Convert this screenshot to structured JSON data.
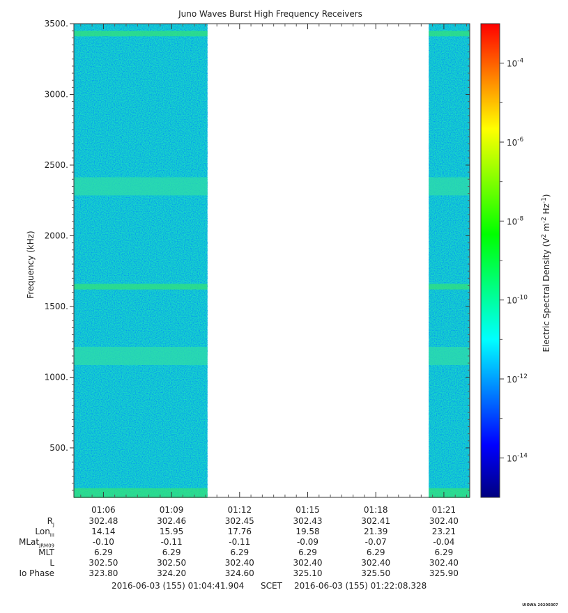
{
  "chart_data": {
    "type": "heatmap",
    "title": "Juno Waves Burst High Frequency Receivers",
    "ylabel": "Frequency (kHz)",
    "ylim": [
      150,
      3500
    ],
    "y_ticks": [
      "500.",
      "1000.",
      "1500.",
      "2000.",
      "2500.",
      "3000.",
      "3500."
    ],
    "y_tick_values": [
      500,
      1000,
      1500,
      2000,
      2500,
      3000,
      3500
    ],
    "x_ticks": [
      "01:06",
      "01:09",
      "01:12",
      "01:15",
      "01:18",
      "01:21"
    ],
    "x_range": [
      "01:04:41.904",
      "01:22:08.328"
    ],
    "data_intervals": [
      [
        "01:04:41.904",
        "01:10:35"
      ],
      [
        "01:20:20",
        "01:22:08.328"
      ]
    ],
    "bands_khz": [
      3430,
      1640,
      2350,
      1150,
      180
    ],
    "colorbar": {
      "label": "Electric Spectral Density (V",
      "label_sup1": "2",
      "label_mid": " m",
      "label_sup2": "-2",
      "label_mid2": " Hz",
      "label_sup3": "-1",
      "label_end": ")",
      "scale": "log",
      "range_exp": [
        -15,
        -3
      ],
      "tick_base": "10",
      "tick_exponents": [
        "-4",
        "-6",
        "-8",
        "-10",
        "-12",
        "-14"
      ],
      "tick_values_exp": [
        -4,
        -6,
        -8,
        -10,
        -12,
        -14
      ],
      "colormap": [
        "#00007f",
        "#0000ff",
        "#0080ff",
        "#00ffff",
        "#00ff80",
        "#00ff00",
        "#80ff00",
        "#ffff00",
        "#ff8000",
        "#ff0000"
      ]
    }
  },
  "ephemeris": {
    "rows": [
      {
        "label": "R",
        "sub": "J",
        "values": [
          "302.48",
          "302.46",
          "302.45",
          "302.43",
          "302.41",
          "302.40"
        ]
      },
      {
        "label": "Lon",
        "sub": "III",
        "values": [
          "14.14",
          "15.95",
          "17.76",
          "19.58",
          "21.39",
          "23.21"
        ]
      },
      {
        "label": "MLat",
        "sub": "JRM09",
        "values": [
          "-0.10",
          "-0.11",
          "-0.11",
          "-0.09",
          "-0.07",
          "-0.04"
        ]
      },
      {
        "label": "MLT",
        "sub": "",
        "values": [
          "6.29",
          "6.29",
          "6.29",
          "6.29",
          "6.29",
          "6.29"
        ]
      },
      {
        "label": "L",
        "sub": "",
        "values": [
          "302.50",
          "302.50",
          "302.40",
          "302.40",
          "302.40",
          "302.40"
        ]
      },
      {
        "label": "Io Phase",
        "sub": "",
        "values": [
          "323.80",
          "324.20",
          "324.60",
          "325.10",
          "325.50",
          "325.90"
        ]
      }
    ]
  },
  "footer": {
    "start": "2016-06-03 (155) 01:04:41.904",
    "scet": "SCET",
    "end": "2016-06-03 (155) 01:22:08.328"
  },
  "stamp": "UIOWA 20200307"
}
